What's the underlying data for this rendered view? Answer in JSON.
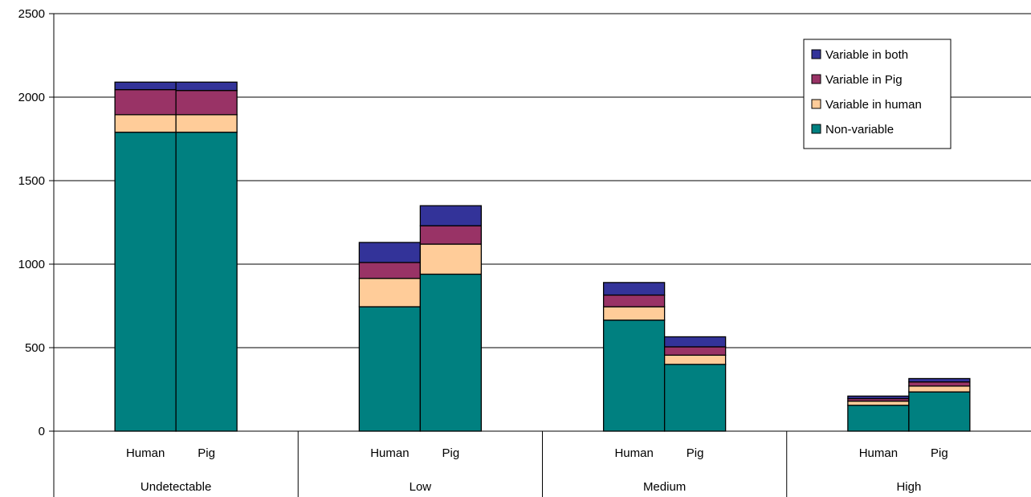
{
  "chart_data": {
    "type": "bar",
    "stacked": true,
    "groups": [
      "Undetectable",
      "Low",
      "Medium",
      "High"
    ],
    "subcategories": [
      "Human",
      "Pig"
    ],
    "ylim": [
      0,
      2500
    ],
    "yticks": [
      0,
      500,
      1000,
      1500,
      2000,
      2500
    ],
    "grid": true,
    "legend_position": "top-right",
    "series": [
      {
        "name": "Non-variable",
        "color": "#008080",
        "values": [
          [
            1790,
            1790
          ],
          [
            745,
            940
          ],
          [
            665,
            400
          ],
          [
            155,
            235
          ]
        ]
      },
      {
        "name": "Variable in human",
        "color": "#FFCC99",
        "values": [
          [
            105,
            105
          ],
          [
            170,
            180
          ],
          [
            80,
            55
          ],
          [
            25,
            35
          ]
        ]
      },
      {
        "name": "Variable in Pig",
        "color": "#993366",
        "values": [
          [
            150,
            145
          ],
          [
            95,
            110
          ],
          [
            70,
            50
          ],
          [
            15,
            25
          ]
        ]
      },
      {
        "name": "Variable in both",
        "color": "#333399",
        "values": [
          [
            45,
            50
          ],
          [
            120,
            120
          ],
          [
            75,
            60
          ],
          [
            15,
            20
          ]
        ]
      }
    ]
  }
}
